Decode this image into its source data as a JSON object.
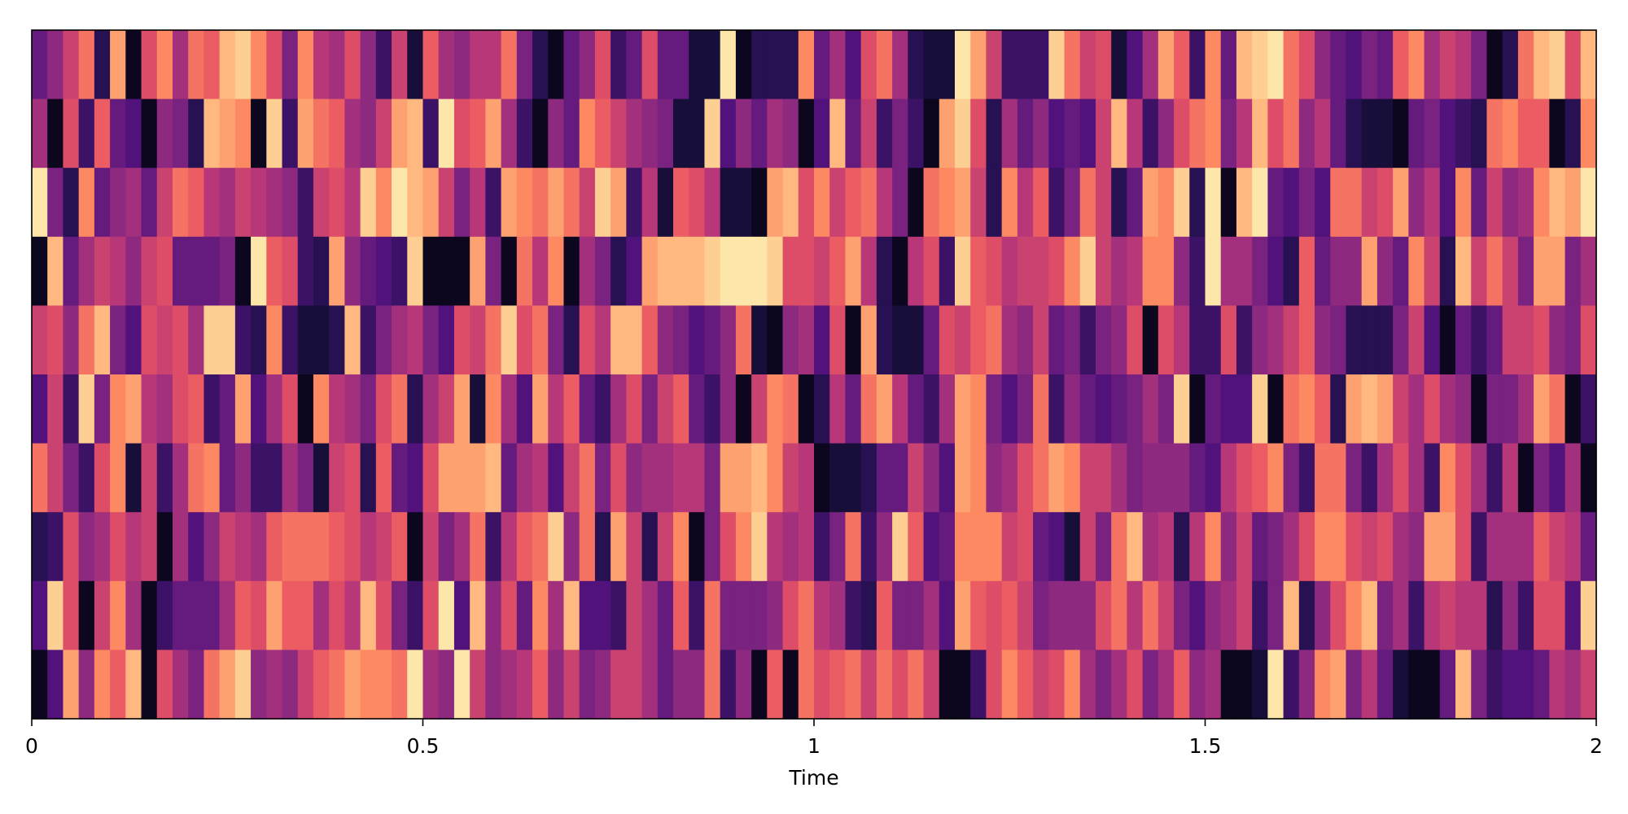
{
  "chart_data": {
    "type": "heatmap",
    "title": "",
    "xlabel": "Time",
    "ylabel": "",
    "xlim": [
      0,
      2
    ],
    "x_ticks": [
      {
        "value": 0,
        "label": "0"
      },
      {
        "value": 0.5,
        "label": "0.5"
      },
      {
        "value": 1,
        "label": "1"
      },
      {
        "value": 1.5,
        "label": "1.5"
      },
      {
        "value": 2,
        "label": "2"
      }
    ],
    "n_rows": 10,
    "n_cols": 100,
    "colormap": "magma",
    "value_range": [
      0,
      1
    ],
    "grid": false,
    "colors": [
      "#000004",
      "#1d1147",
      "#51127c",
      "#832681",
      "#b73779",
      "#e75263",
      "#fc8961",
      "#fec488",
      "#fcfdbf"
    ],
    "frame_color": "#000000",
    "rows": [
      [
        0.3,
        0.4,
        0.55,
        0.7,
        0.15,
        0.8,
        0.05,
        0.6,
        0.75,
        0.45,
        0.7,
        0.65,
        0.85,
        0.9,
        0.75,
        0.6,
        0.35,
        0.75,
        0.5,
        0.45,
        0.6,
        0.4,
        0.2,
        0.55,
        0.1,
        0.65,
        0.45,
        0.4,
        0.5,
        0.5,
        0.7,
        0.35,
        0.15,
        0.05,
        0.3,
        0.4,
        0.6,
        0.2,
        0.3,
        0.6,
        0.3,
        0.3,
        0.1,
        0.1,
        0.95,
        0.05,
        0.15,
        0.15,
        0.15,
        0.75,
        0.3,
        0.45,
        0.25,
        0.6,
        0.7,
        0.45,
        0.15,
        0.1,
        0.1,
        0.95,
        0.8,
        0.55,
        0.2,
        0.2,
        0.2,
        0.9,
        0.7,
        0.55,
        0.6,
        0.1,
        0.25,
        0.45,
        0.8,
        0.65,
        0.2,
        0.75,
        0.3,
        0.85,
        0.9,
        0.95,
        0.7,
        0.6,
        0.4,
        0.3,
        0.25,
        0.35,
        0.3,
        0.65,
        0.75,
        0.45,
        0.55,
        0.5,
        0.35,
        0.05,
        0.15,
        0.7,
        0.85,
        0.9,
        0.6,
        0.85
      ],
      [
        0.45,
        0.05,
        0.6,
        0.2,
        0.65,
        0.3,
        0.25,
        0.05,
        0.4,
        0.35,
        0.15,
        0.85,
        0.8,
        0.75,
        0.05,
        0.9,
        0.2,
        0.8,
        0.7,
        0.65,
        0.45,
        0.4,
        0.55,
        0.8,
        0.85,
        0.2,
        0.95,
        0.6,
        0.65,
        0.8,
        0.45,
        0.2,
        0.05,
        0.4,
        0.3,
        0.75,
        0.65,
        0.55,
        0.45,
        0.4,
        0.35,
        0.1,
        0.1,
        0.9,
        0.25,
        0.4,
        0.3,
        0.45,
        0.4,
        0.05,
        0.25,
        0.85,
        0.3,
        0.55,
        0.2,
        0.35,
        0.2,
        0.05,
        0.8,
        0.9,
        0.6,
        0.15,
        0.45,
        0.3,
        0.4,
        0.25,
        0.3,
        0.25,
        0.55,
        0.85,
        0.5,
        0.2,
        0.4,
        0.6,
        0.7,
        0.75,
        0.35,
        0.5,
        0.85,
        0.6,
        0.7,
        0.4,
        0.5,
        0.3,
        0.15,
        0.1,
        0.1,
        0.05,
        0.3,
        0.35,
        0.25,
        0.2,
        0.15,
        0.7,
        0.75,
        0.65,
        0.65,
        0.05,
        0.15,
        0.75
      ],
      [
        0.95,
        0.35,
        0.15,
        0.75,
        0.3,
        0.4,
        0.45,
        0.3,
        0.55,
        0.7,
        0.65,
        0.5,
        0.45,
        0.55,
        0.5,
        0.45,
        0.4,
        0.2,
        0.55,
        0.6,
        0.5,
        0.9,
        0.75,
        0.95,
        0.85,
        0.8,
        0.55,
        0.35,
        0.5,
        0.2,
        0.8,
        0.75,
        0.7,
        0.8,
        0.7,
        0.55,
        0.9,
        0.8,
        0.2,
        0.5,
        0.1,
        0.65,
        0.6,
        0.5,
        0.1,
        0.1,
        0.05,
        0.8,
        0.85,
        0.6,
        0.75,
        0.55,
        0.65,
        0.7,
        0.5,
        0.35,
        0.05,
        0.7,
        0.75,
        0.8,
        0.55,
        0.15,
        0.75,
        0.5,
        0.65,
        0.2,
        0.35,
        0.7,
        0.55,
        0.15,
        0.3,
        0.8,
        0.75,
        0.9,
        0.15,
        0.95,
        0.05,
        0.85,
        0.95,
        0.3,
        0.25,
        0.35,
        0.25,
        0.7,
        0.7,
        0.55,
        0.6,
        0.8,
        0.4,
        0.5,
        0.25,
        0.75,
        0.3,
        0.55,
        0.4,
        0.45,
        0.75,
        0.85,
        0.8,
        0.95
      ],
      [
        0.05,
        0.85,
        0.3,
        0.45,
        0.55,
        0.5,
        0.4,
        0.55,
        0.6,
        0.3,
        0.3,
        0.3,
        0.35,
        0.05,
        0.95,
        0.65,
        0.6,
        0.2,
        0.15,
        0.8,
        0.4,
        0.3,
        0.25,
        0.2,
        0.9,
        0.05,
        0.05,
        0.05,
        0.8,
        0.35,
        0.05,
        0.7,
        0.5,
        0.75,
        0.05,
        0.45,
        0.35,
        0.15,
        0.25,
        0.8,
        0.85,
        0.85,
        0.85,
        0.9,
        0.95,
        0.95,
        0.95,
        0.9,
        0.6,
        0.6,
        0.55,
        0.65,
        0.8,
        0.5,
        0.15,
        0.05,
        0.5,
        0.6,
        0.2,
        0.9,
        0.65,
        0.6,
        0.5,
        0.55,
        0.55,
        0.6,
        0.75,
        0.9,
        0.55,
        0.45,
        0.5,
        0.75,
        0.75,
        0.4,
        0.2,
        0.95,
        0.45,
        0.45,
        0.35,
        0.25,
        0.15,
        0.65,
        0.3,
        0.4,
        0.4,
        0.8,
        0.4,
        0.3,
        0.75,
        0.55,
        0.15,
        0.85,
        0.55,
        0.7,
        0.55,
        0.35,
        0.8,
        0.8,
        0.35,
        0.45
      ],
      [
        0.55,
        0.6,
        0.4,
        0.7,
        0.85,
        0.35,
        0.25,
        0.6,
        0.55,
        0.6,
        0.45,
        0.9,
        0.9,
        0.2,
        0.15,
        0.75,
        0.2,
        0.1,
        0.1,
        0.15,
        0.85,
        0.2,
        0.35,
        0.45,
        0.5,
        0.35,
        0.25,
        0.6,
        0.55,
        0.7,
        0.9,
        0.6,
        0.7,
        0.35,
        0.15,
        0.6,
        0.5,
        0.85,
        0.85,
        0.65,
        0.4,
        0.35,
        0.25,
        0.3,
        0.4,
        0.7,
        0.1,
        0.05,
        0.4,
        0.45,
        0.25,
        0.6,
        0.05,
        0.8,
        0.15,
        0.1,
        0.1,
        0.3,
        0.6,
        0.55,
        0.65,
        0.7,
        0.45,
        0.4,
        0.55,
        0.3,
        0.35,
        0.2,
        0.35,
        0.4,
        0.6,
        0.05,
        0.6,
        0.5,
        0.2,
        0.2,
        0.6,
        0.2,
        0.4,
        0.45,
        0.55,
        0.65,
        0.4,
        0.35,
        0.15,
        0.15,
        0.15,
        0.35,
        0.55,
        0.25,
        0.05,
        0.3,
        0.2,
        0.3,
        0.55,
        0.55,
        0.6,
        0.4,
        0.35,
        0.6
      ],
      [
        0.25,
        0.55,
        0.2,
        0.9,
        0.35,
        0.75,
        0.8,
        0.5,
        0.45,
        0.6,
        0.65,
        0.2,
        0.3,
        0.8,
        0.25,
        0.45,
        0.6,
        0.05,
        0.75,
        0.5,
        0.45,
        0.35,
        0.6,
        0.7,
        0.15,
        0.45,
        0.55,
        0.8,
        0.1,
        0.75,
        0.45,
        0.25,
        0.8,
        0.5,
        0.65,
        0.3,
        0.2,
        0.45,
        0.6,
        0.35,
        0.55,
        0.65,
        0.3,
        0.2,
        0.4,
        0.05,
        0.55,
        0.75,
        0.7,
        0.05,
        0.15,
        0.5,
        0.3,
        0.7,
        0.8,
        0.5,
        0.3,
        0.2,
        0.45,
        0.8,
        0.75,
        0.35,
        0.25,
        0.35,
        0.7,
        0.2,
        0.4,
        0.3,
        0.25,
        0.3,
        0.35,
        0.45,
        0.35,
        0.9,
        0.05,
        0.3,
        0.25,
        0.25,
        0.9,
        0.05,
        0.7,
        0.75,
        0.65,
        0.15,
        0.8,
        0.85,
        0.8,
        0.55,
        0.45,
        0.6,
        0.45,
        0.4,
        0.05,
        0.35,
        0.35,
        0.45,
        0.8,
        0.7,
        0.05,
        0.2
      ],
      [
        0.7,
        0.55,
        0.35,
        0.2,
        0.6,
        0.75,
        0.1,
        0.55,
        0.2,
        0.45,
        0.7,
        0.75,
        0.3,
        0.4,
        0.2,
        0.2,
        0.45,
        0.35,
        0.1,
        0.55,
        0.6,
        0.15,
        0.65,
        0.3,
        0.25,
        0.6,
        0.8,
        0.8,
        0.8,
        0.85,
        0.3,
        0.45,
        0.5,
        0.25,
        0.55,
        0.7,
        0.35,
        0.6,
        0.4,
        0.45,
        0.45,
        0.5,
        0.5,
        0.35,
        0.8,
        0.8,
        0.85,
        0.75,
        0.55,
        0.5,
        0.05,
        0.1,
        0.1,
        0.15,
        0.3,
        0.3,
        0.55,
        0.4,
        0.25,
        0.8,
        0.75,
        0.4,
        0.45,
        0.6,
        0.7,
        0.8,
        0.75,
        0.55,
        0.55,
        0.45,
        0.35,
        0.4,
        0.4,
        0.4,
        0.3,
        0.25,
        0.5,
        0.6,
        0.65,
        0.75,
        0.35,
        0.2,
        0.7,
        0.7,
        0.35,
        0.2,
        0.45,
        0.6,
        0.45,
        0.2,
        0.75,
        0.6,
        0.45,
        0.2,
        0.5,
        0.05,
        0.35,
        0.25,
        0.45,
        0.05
      ],
      [
        0.15,
        0.2,
        0.6,
        0.4,
        0.45,
        0.6,
        0.5,
        0.55,
        0.05,
        0.45,
        0.25,
        0.4,
        0.55,
        0.5,
        0.45,
        0.65,
        0.7,
        0.7,
        0.7,
        0.65,
        0.6,
        0.5,
        0.55,
        0.65,
        0.05,
        0.55,
        0.35,
        0.45,
        0.7,
        0.2,
        0.5,
        0.65,
        0.7,
        0.9,
        0.4,
        0.7,
        0.15,
        0.8,
        0.55,
        0.15,
        0.55,
        0.75,
        0.05,
        0.35,
        0.6,
        0.75,
        0.9,
        0.5,
        0.45,
        0.5,
        0.2,
        0.35,
        0.7,
        0.2,
        0.4,
        0.9,
        0.65,
        0.25,
        0.3,
        0.75,
        0.75,
        0.75,
        0.55,
        0.6,
        0.3,
        0.25,
        0.1,
        0.55,
        0.35,
        0.7,
        0.85,
        0.45,
        0.5,
        0.15,
        0.5,
        0.75,
        0.4,
        0.55,
        0.3,
        0.35,
        0.45,
        0.6,
        0.75,
        0.75,
        0.6,
        0.55,
        0.6,
        0.45,
        0.4,
        0.8,
        0.8,
        0.6,
        0.2,
        0.45,
        0.45,
        0.45,
        0.65,
        0.55,
        0.5,
        0.3
      ],
      [
        0.25,
        0.9,
        0.6,
        0.05,
        0.55,
        0.75,
        0.45,
        0.05,
        0.2,
        0.3,
        0.3,
        0.3,
        0.45,
        0.65,
        0.6,
        0.8,
        0.65,
        0.65,
        0.45,
        0.6,
        0.5,
        0.85,
        0.6,
        0.35,
        0.2,
        0.6,
        0.95,
        0.25,
        0.85,
        0.4,
        0.6,
        0.3,
        0.75,
        0.45,
        0.85,
        0.25,
        0.25,
        0.2,
        0.55,
        0.45,
        0.3,
        0.65,
        0.2,
        0.7,
        0.35,
        0.35,
        0.35,
        0.4,
        0.6,
        0.7,
        0.5,
        0.45,
        0.2,
        0.15,
        0.65,
        0.35,
        0.35,
        0.45,
        0.25,
        0.8,
        0.65,
        0.6,
        0.65,
        0.55,
        0.35,
        0.4,
        0.4,
        0.4,
        0.6,
        0.7,
        0.5,
        0.7,
        0.55,
        0.35,
        0.25,
        0.4,
        0.45,
        0.55,
        0.2,
        0.35,
        0.85,
        0.15,
        0.4,
        0.6,
        0.75,
        0.85,
        0.35,
        0.45,
        0.2,
        0.5,
        0.55,
        0.5,
        0.5,
        0.15,
        0.4,
        0.2,
        0.6,
        0.6,
        0.25,
        0.9
      ],
      [
        0.05,
        0.25,
        0.8,
        0.4,
        0.75,
        0.65,
        0.85,
        0.05,
        0.6,
        0.45,
        0.35,
        0.7,
        0.8,
        0.9,
        0.4,
        0.45,
        0.4,
        0.55,
        0.65,
        0.7,
        0.8,
        0.75,
        0.75,
        0.7,
        0.95,
        0.45,
        0.4,
        0.95,
        0.55,
        0.4,
        0.45,
        0.5,
        0.65,
        0.4,
        0.55,
        0.35,
        0.4,
        0.55,
        0.55,
        0.45,
        0.3,
        0.4,
        0.4,
        0.7,
        0.2,
        0.4,
        0.05,
        0.65,
        0.05,
        0.7,
        0.6,
        0.65,
        0.7,
        0.55,
        0.7,
        0.6,
        0.7,
        0.55,
        0.05,
        0.05,
        0.2,
        0.6,
        0.75,
        0.65,
        0.55,
        0.6,
        0.75,
        0.45,
        0.35,
        0.45,
        0.6,
        0.35,
        0.45,
        0.65,
        0.4,
        0.45,
        0.05,
        0.05,
        0.1,
        0.95,
        0.2,
        0.4,
        0.75,
        0.8,
        0.35,
        0.5,
        0.3,
        0.1,
        0.05,
        0.05,
        0.3,
        0.85,
        0.35,
        0.2,
        0.25,
        0.25,
        0.3,
        0.5,
        0.45,
        0.55
      ]
    ]
  }
}
